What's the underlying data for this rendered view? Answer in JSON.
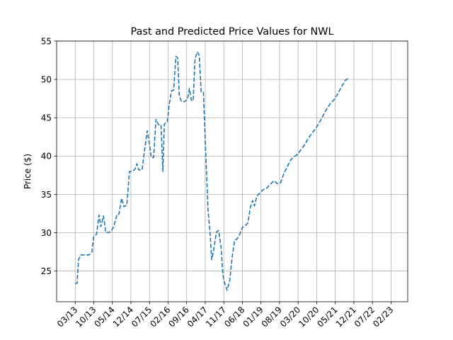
{
  "chart_data": {
    "type": "line",
    "title": "Past and Predicted Price Values for NWL",
    "xlabel": "",
    "ylabel": "Price ($)",
    "categories": [
      "03/13",
      "10/13",
      "05/14",
      "12/14",
      "07/15",
      "02/16",
      "09/16",
      "04/17",
      "11/17",
      "06/18",
      "01/19",
      "08/19",
      "03/20",
      "10/20",
      "05/21",
      "12/21",
      "07/22",
      "02/23"
    ],
    "yticks": [
      25,
      30,
      35,
      40,
      45,
      50,
      55
    ],
    "ylim": [
      21.0,
      55.0
    ],
    "xlim": [
      -1.0,
      17.9
    ],
    "grid": true,
    "line_style": "dashed",
    "series": [
      {
        "color": "#1f77b4",
        "points": [
          [
            0.0,
            23.4
          ],
          [
            0.1,
            23.4
          ],
          [
            0.18,
            26.5
          ],
          [
            0.3,
            27.1
          ],
          [
            0.55,
            27.1
          ],
          [
            0.75,
            27.1
          ],
          [
            0.9,
            27.5
          ],
          [
            1.0,
            29.5
          ],
          [
            1.15,
            29.8
          ],
          [
            1.28,
            32.3
          ],
          [
            1.38,
            30.8
          ],
          [
            1.52,
            32.2
          ],
          [
            1.65,
            30.0
          ],
          [
            1.9,
            30.1
          ],
          [
            2.08,
            30.8
          ],
          [
            2.25,
            32.4
          ],
          [
            2.35,
            32.4
          ],
          [
            2.5,
            34.5
          ],
          [
            2.62,
            33.4
          ],
          [
            2.78,
            33.6
          ],
          [
            2.92,
            38.0
          ],
          [
            3.08,
            38.0
          ],
          [
            3.22,
            38.3
          ],
          [
            3.32,
            39.0
          ],
          [
            3.42,
            38.2
          ],
          [
            3.6,
            38.2
          ],
          [
            3.72,
            40.5
          ],
          [
            3.88,
            43.3
          ],
          [
            3.98,
            41.8
          ],
          [
            4.1,
            39.8
          ],
          [
            4.22,
            39.8
          ],
          [
            4.35,
            44.8
          ],
          [
            4.48,
            44.1
          ],
          [
            4.62,
            44.1
          ],
          [
            4.72,
            38.0
          ],
          [
            4.8,
            44.2
          ],
          [
            4.95,
            44.4
          ],
          [
            5.08,
            47.0
          ],
          [
            5.18,
            48.5
          ],
          [
            5.3,
            48.6
          ],
          [
            5.42,
            53.0
          ],
          [
            5.52,
            52.8
          ],
          [
            5.6,
            48.0
          ],
          [
            5.72,
            47.1
          ],
          [
            5.9,
            47.1
          ],
          [
            6.05,
            47.5
          ],
          [
            6.15,
            48.8
          ],
          [
            6.25,
            47.3
          ],
          [
            6.35,
            47.2
          ],
          [
            6.45,
            52.7
          ],
          [
            6.58,
            53.6
          ],
          [
            6.68,
            53.1
          ],
          [
            6.78,
            48.4
          ],
          [
            6.9,
            48.4
          ],
          [
            7.0,
            42.0
          ],
          [
            7.15,
            33.0
          ],
          [
            7.25,
            30.3
          ],
          [
            7.35,
            26.5
          ],
          [
            7.48,
            28.1
          ],
          [
            7.6,
            30.1
          ],
          [
            7.72,
            30.3
          ],
          [
            7.85,
            28.2
          ],
          [
            7.95,
            24.5
          ],
          [
            8.05,
            23.4
          ],
          [
            8.18,
            22.5
          ],
          [
            8.32,
            23.8
          ],
          [
            8.45,
            26.8
          ],
          [
            8.58,
            29.0
          ],
          [
            8.72,
            29.2
          ],
          [
            8.88,
            29.9
          ],
          [
            9.0,
            30.7
          ],
          [
            9.15,
            30.9
          ],
          [
            9.3,
            31.3
          ],
          [
            9.42,
            33.2
          ],
          [
            9.55,
            34.2
          ],
          [
            9.65,
            33.5
          ],
          [
            9.78,
            34.8
          ],
          [
            9.95,
            35.2
          ],
          [
            10.1,
            35.6
          ],
          [
            10.3,
            35.8
          ],
          [
            10.5,
            36.3
          ],
          [
            10.7,
            36.8
          ],
          [
            10.88,
            36.4
          ],
          [
            11.05,
            36.5
          ],
          [
            11.25,
            37.8
          ],
          [
            11.4,
            38.5
          ],
          [
            11.6,
            39.5
          ],
          [
            11.78,
            39.9
          ],
          [
            11.95,
            40.2
          ],
          [
            12.15,
            40.8
          ],
          [
            12.35,
            41.5
          ],
          [
            12.55,
            42.3
          ],
          [
            12.75,
            43.0
          ],
          [
            12.95,
            43.6
          ],
          [
            13.15,
            44.4
          ],
          [
            13.35,
            45.3
          ],
          [
            13.55,
            46.2
          ],
          [
            13.75,
            46.9
          ],
          [
            13.95,
            47.4
          ],
          [
            14.15,
            48.2
          ],
          [
            14.35,
            49.1
          ],
          [
            14.55,
            49.9
          ],
          [
            14.75,
            50.2
          ]
        ]
      }
    ]
  }
}
